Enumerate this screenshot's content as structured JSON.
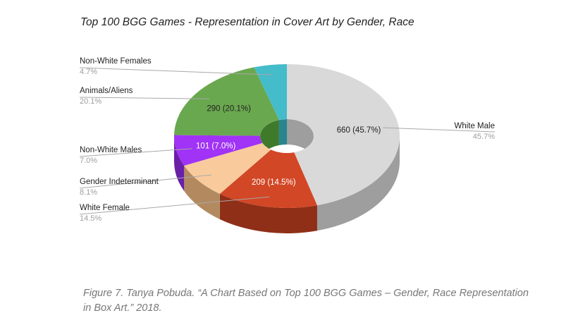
{
  "chart_data": {
    "type": "pie",
    "title": "Top 100 BGG Games - Representation in Cover Art by Gender, Race",
    "style": "3d-donut",
    "legend_placement": "none (external leader labels)",
    "slices": [
      {
        "label": "White Male",
        "value": 660,
        "percent": "45.7%",
        "inner_label": "660 (45.7%)",
        "color": "#d9d9d9",
        "side": "#9e9e9e",
        "text_color": "#222222"
      },
      {
        "label": "White Female",
        "value": 209,
        "percent": "14.5%",
        "inner_label": "209 (14.5%)",
        "color": "#d24726",
        "side": "#8f2f18",
        "text_color": "#ffffff"
      },
      {
        "label": "Gender Indeterminant",
        "value": 117,
        "percent": "8.1%",
        "inner_label": "",
        "color": "#f9cb9c",
        "side": "#b38a60",
        "text_color": "#222222"
      },
      {
        "label": "Non-White Males",
        "value": 101,
        "percent": "7.0%",
        "inner_label": "101 (7.0%)",
        "color": "#a033f5",
        "side": "#6a1fa8",
        "text_color": "#ffffff"
      },
      {
        "label": "Animals/Aliens",
        "value": 290,
        "percent": "20.1%",
        "inner_label": "290 (20.1%)",
        "color": "#6aa84f",
        "side": "#3f7a2b",
        "text_color": "#222222"
      },
      {
        "label": "Non-White Females",
        "value": 68,
        "percent": "4.7%",
        "inner_label": "",
        "color": "#45bcc9",
        "side": "#2a8590",
        "text_color": "#222222"
      }
    ]
  },
  "caption": "Figure 7. Tanya Pobuda. “A Chart Based on Top 100 BGG Games – Gender, Race Representation in Box Art.” 2018."
}
